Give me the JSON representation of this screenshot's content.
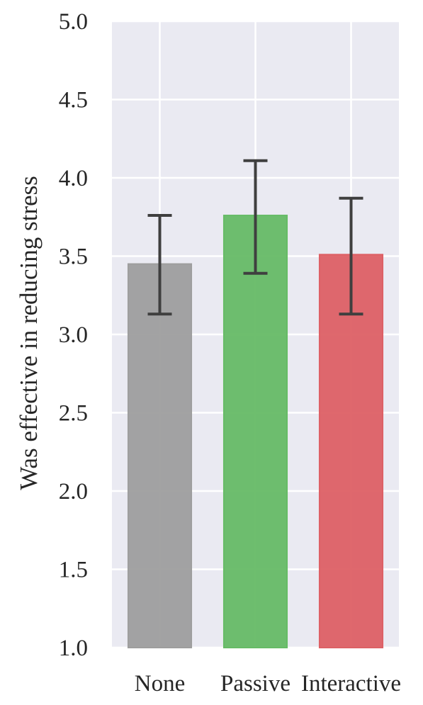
{
  "chart_data": {
    "type": "bar",
    "title": "",
    "xlabel": "",
    "ylabel": "Was effective in reducing stress",
    "categories": [
      "None",
      "Passive",
      "Interactive"
    ],
    "values": [
      3.45,
      3.76,
      3.51
    ],
    "error_low": [
      3.13,
      3.39,
      3.13
    ],
    "error_high": [
      3.76,
      4.11,
      3.87
    ],
    "ylim": [
      1.0,
      5.0
    ],
    "yticks": [
      "1.0",
      "1.5",
      "2.0",
      "2.5",
      "3.0",
      "3.5",
      "4.0",
      "4.5",
      "5.0"
    ],
    "grid": true,
    "legend": "none",
    "colors": {
      "background": "#eaeaf2",
      "grid": "#ffffff",
      "bars": [
        "#9e9e9e",
        "#66bb66",
        "#dd6065"
      ],
      "error_bars": "#3f3f3f"
    }
  }
}
